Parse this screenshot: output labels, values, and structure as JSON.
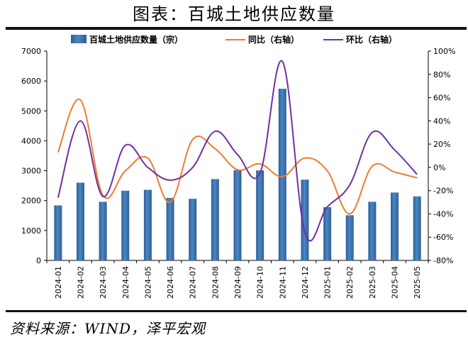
{
  "title": "图表：百城土地供应数量",
  "source": "资料来源：WIND，泽平宏观",
  "colors": {
    "bar": "#4a86c5",
    "bar_dark": "#2e5f95",
    "yoy": "#ed7d31",
    "mom": "#7030a0",
    "axis": "#000000"
  },
  "chart_data": {
    "type": "bar",
    "categories": [
      "2024-01",
      "2024-02",
      "2024-03",
      "2024-04",
      "2024-05",
      "2024-06",
      "2024-07",
      "2024-08",
      "2024-09",
      "2024-10",
      "2024-11",
      "2024-12",
      "2025-01",
      "2025-02",
      "2025-03",
      "2025-04",
      "2025-05"
    ],
    "ylim": [
      0,
      7000
    ],
    "yticks": [
      "0",
      "1000",
      "2000",
      "3000",
      "4000",
      "5000",
      "6000",
      "7000"
    ],
    "y2lim": [
      -80,
      100
    ],
    "y2ticks": [
      "-80%",
      "-60%",
      "-40%",
      "-20%",
      "0%",
      "20%",
      "40%",
      "60%",
      "80%",
      "100%"
    ],
    "grid": false,
    "legend_position": "top",
    "series": [
      {
        "name": "百城土地供应数量（宗）",
        "type": "bar",
        "axis": "left",
        "values": [
          1840,
          2600,
          1960,
          2330,
          2360,
          2090,
          2060,
          2720,
          3020,
          3010,
          5740,
          2700,
          1780,
          1510,
          1960,
          2270,
          2140
        ]
      },
      {
        "name": "同比（右轴）",
        "type": "line",
        "axis": "right",
        "values": [
          13,
          58,
          -24,
          -3,
          8,
          -30,
          24,
          16,
          -2,
          3,
          -8,
          8,
          -3,
          -40,
          1,
          -4,
          -9
        ]
      },
      {
        "name": "环比（右轴）",
        "type": "line",
        "axis": "right",
        "values": [
          -26,
          40,
          -25,
          19,
          0,
          -11,
          0,
          31,
          11,
          -5,
          91,
          -56,
          -34,
          -15,
          30,
          15,
          -6
        ]
      }
    ]
  }
}
